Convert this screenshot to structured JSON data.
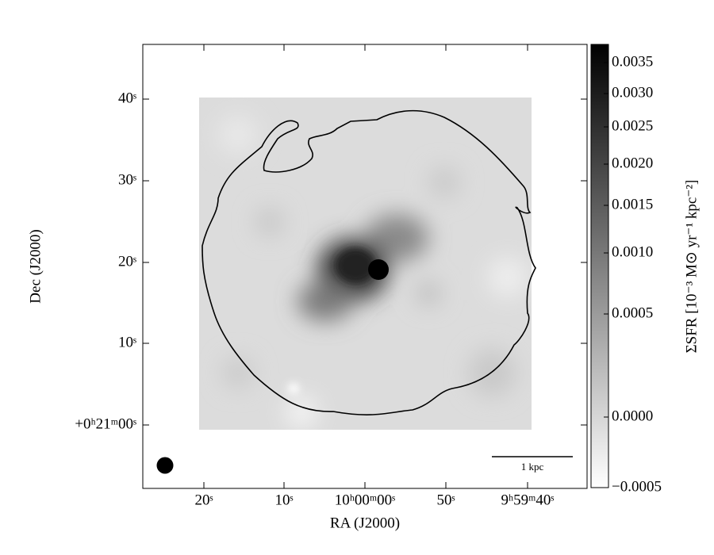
{
  "axes": {
    "xlabel": "RA (J2000)",
    "ylabel": "Dec (J2000)",
    "xtick_labels": [
      "20ˢ",
      "10ˢ",
      "10ʰ00ᵐ00ˢ",
      "50ˢ",
      "9ʰ59ᵐ40ˢ"
    ],
    "ytick_labels": [
      "40ˢ",
      "30ˢ",
      "20ˢ",
      "10ˢ",
      "+0ʰ21ᵐ00ˢ"
    ],
    "scale_bar_label": "1 kpc"
  },
  "colorbar": {
    "label": "ΣSFR [10⁻³ M⊙ yr⁻¹ kpc⁻²]",
    "ticks": [
      {
        "value": -0.0005,
        "label": "−0.0005"
      },
      {
        "value": 0,
        "label": "0.0000"
      },
      0.0005,
      {
        "value": 0.001,
        "label": "0.0010"
      },
      0.0015,
      {
        "value": 0.002,
        "label": "0.0020"
      },
      0.0025,
      {
        "value": 0.003,
        "label": "0.0030"
      },
      0.0035
    ]
  }
}
